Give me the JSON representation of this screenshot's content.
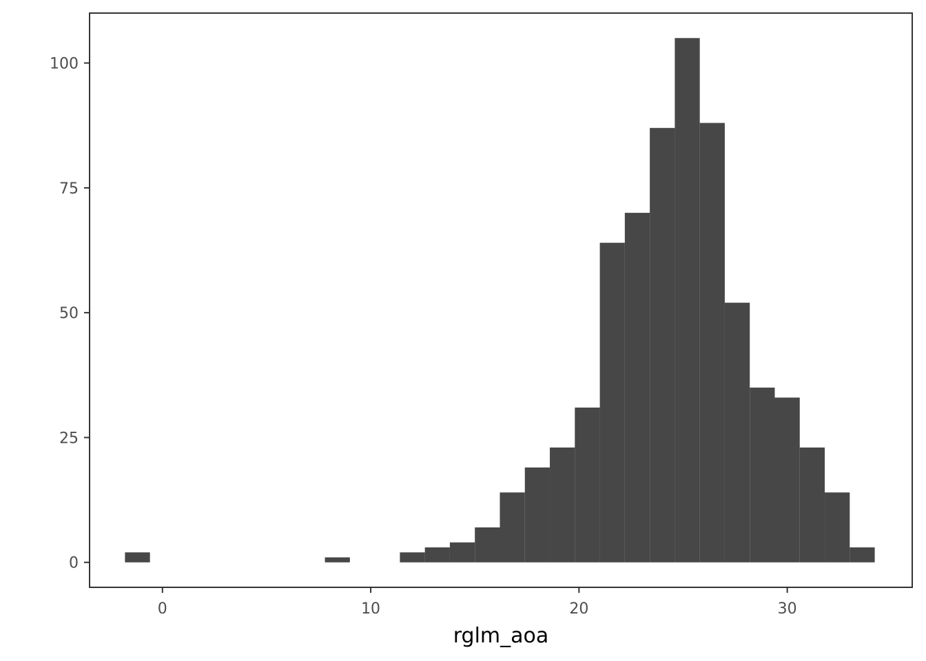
{
  "chart_data": {
    "type": "bar",
    "subtype": "histogram",
    "title": "",
    "xlabel": "rglm_aoa",
    "ylabel": "",
    "bin_width": 1.2,
    "bins": [
      {
        "x0": -1.8,
        "x1": -0.6,
        "count": 2
      },
      {
        "x0": 7.8,
        "x1": 9.0,
        "count": 1
      },
      {
        "x0": 11.4,
        "x1": 12.6,
        "count": 2
      },
      {
        "x0": 12.6,
        "x1": 13.8,
        "count": 3
      },
      {
        "x0": 13.8,
        "x1": 15.0,
        "count": 4
      },
      {
        "x0": 15.0,
        "x1": 16.2,
        "count": 7
      },
      {
        "x0": 16.2,
        "x1": 17.4,
        "count": 14
      },
      {
        "x0": 17.4,
        "x1": 18.6,
        "count": 19
      },
      {
        "x0": 18.6,
        "x1": 19.8,
        "count": 23
      },
      {
        "x0": 19.8,
        "x1": 21.0,
        "count": 31
      },
      {
        "x0": 21.0,
        "x1": 22.2,
        "count": 64
      },
      {
        "x0": 22.2,
        "x1": 23.4,
        "count": 70
      },
      {
        "x0": 23.4,
        "x1": 24.6,
        "count": 87
      },
      {
        "x0": 24.6,
        "x1": 25.8,
        "count": 105
      },
      {
        "x0": 25.8,
        "x1": 27.0,
        "count": 88
      },
      {
        "x0": 27.0,
        "x1": 28.2,
        "count": 52
      },
      {
        "x0": 28.2,
        "x1": 29.4,
        "count": 35
      },
      {
        "x0": 29.4,
        "x1": 30.6,
        "count": 33
      },
      {
        "x0": 30.6,
        "x1": 31.8,
        "count": 23
      },
      {
        "x0": 31.8,
        "x1": 33.0,
        "count": 14
      },
      {
        "x0": 33.0,
        "x1": 34.2,
        "count": 3
      }
    ],
    "xlim": [
      -3.5,
      36.0
    ],
    "ylim": [
      -5.0,
      110.0
    ],
    "x_ticks": [
      0,
      10,
      20,
      30
    ],
    "y_ticks": [
      0,
      25,
      50,
      75,
      100
    ],
    "grid": false,
    "bar_color": "#474747",
    "panel_border_color": "#333333",
    "tick_label_color": "#4d4d4d"
  }
}
